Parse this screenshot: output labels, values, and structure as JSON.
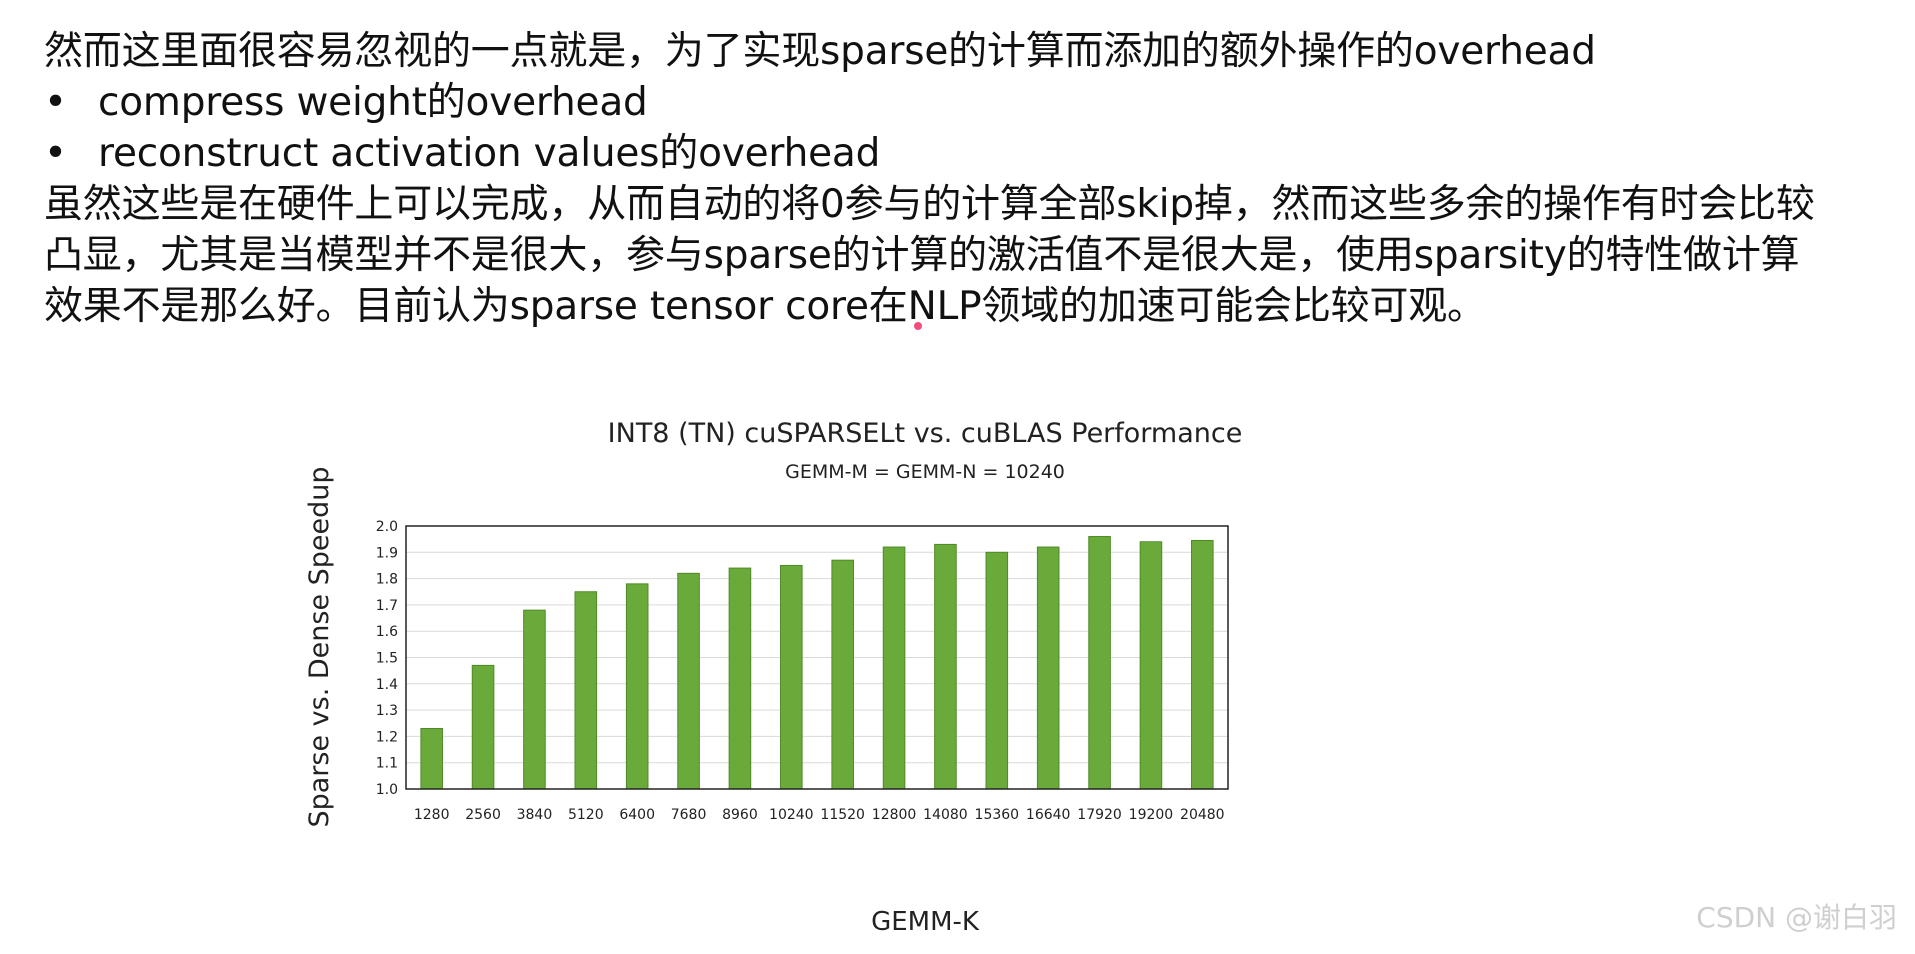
{
  "content": {
    "intro": "然而这里面很容易忽视的一点就是，为了实现sparse的计算而添加的额外操作的overhead",
    "bullets": [
      "compress weight的overhead",
      "reconstruct activation values的overhead"
    ],
    "bullet_symbol": "•",
    "paragraph_lines": [
      "虽然这些是在硬件上可以完成，从而自动的将0参与的计算全部skip掉，然而这些多余的操作有时会比较",
      "凸显，尤其是当模型并不是很大，参与sparse的计算的激活值不是很大是，使用sparsity的特性做计算",
      "效果不是那么好。目前认为sparse tensor core在NLP领域的加速可能会比较可观。"
    ]
  },
  "watermark": "CSDN @谢白羽",
  "colors": {
    "bar_fill": "#6aaa3a",
    "bar_stroke": "#4e8a27",
    "grid": "#d9d9d9",
    "text": "#111111",
    "pointer": "#f04d7a"
  },
  "chart_data": {
    "type": "bar",
    "title": "INT8 (TN) cuSPARSELt vs. cuBLAS Performance",
    "subtitle": "GEMM-M = GEMM-N = 10240",
    "xlabel": "GEMM-K",
    "ylabel": "Sparse vs. Dense Speedup",
    "categories": [
      "1280",
      "2560",
      "3840",
      "5120",
      "6400",
      "7680",
      "8960",
      "10240",
      "11520",
      "12800",
      "14080",
      "15360",
      "16640",
      "17920",
      "19200",
      "20480"
    ],
    "values": [
      1.23,
      1.47,
      1.68,
      1.75,
      1.78,
      1.82,
      1.84,
      1.85,
      1.87,
      1.92,
      1.93,
      1.9,
      1.92,
      1.96,
      1.94,
      1.945
    ],
    "ylim": [
      1.0,
      2.0
    ],
    "yticks": [
      "1.0",
      "1.1",
      "1.2",
      "1.3",
      "1.4",
      "1.5",
      "1.6",
      "1.7",
      "1.8",
      "1.9",
      "2.0"
    ],
    "grid": true,
    "legend": "none"
  }
}
